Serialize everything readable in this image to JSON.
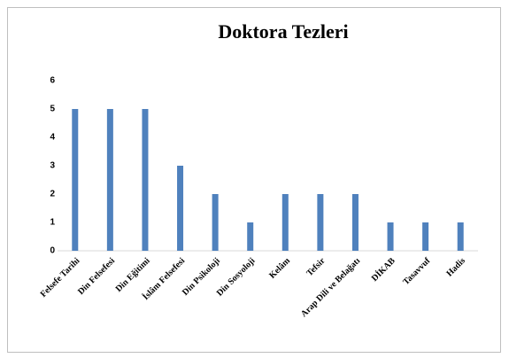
{
  "chart_data": {
    "type": "bar",
    "title": "Doktora Tezleri",
    "categories": [
      "Felsefe Tarihi",
      "Din Felsefesi",
      "Din Eğitimi",
      "İslâm Felsefesi",
      "Din Psikoloji",
      "Din Sosyoloji",
      "Kelâm",
      "Tefsir",
      "Arap Dili ve Belağatı",
      "DİKAB",
      "Tasavvuf",
      "Hadis"
    ],
    "values": [
      5,
      5,
      5,
      3,
      2,
      1,
      2,
      2,
      2,
      1,
      1,
      1
    ],
    "color": "#4f81bd",
    "ylim": [
      0,
      6
    ],
    "yticks": [
      0,
      1,
      2,
      3,
      4,
      5,
      6
    ],
    "grid": false
  }
}
